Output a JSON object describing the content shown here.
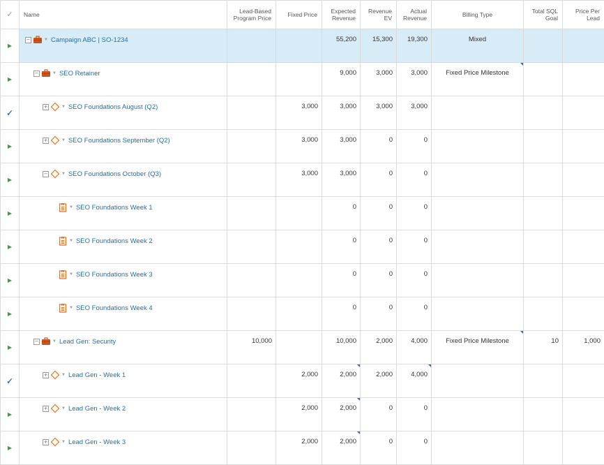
{
  "columns": {
    "name": "Name",
    "lead_based_1": "Lead-Based",
    "lead_based_2": "Program Price",
    "fixed_price": "Fixed Price",
    "expected_1": "Expected",
    "expected_2": "Revenue",
    "rev_ev_1": "Revenue",
    "rev_ev_2": "EV",
    "actual_1": "Actual",
    "actual_2": "Revenue",
    "billing_type": "Billing Type",
    "sql_1": "Total SQL",
    "sql_2": "Goal",
    "ppl_1": "Price Per",
    "ppl_2": "Lead"
  },
  "rows": [
    {
      "name": "Campaign ABC | SO-1234",
      "lead_based": "",
      "fixed_price": "",
      "expected": "55,200",
      "rev_ev": "15,300",
      "actual": "19,300",
      "billing_type": "Mixed",
      "sql_goal": "",
      "price_per_lead": ""
    },
    {
      "name": "SEO Retainer",
      "lead_based": "",
      "fixed_price": "",
      "expected": "9,000",
      "rev_ev": "3,000",
      "actual": "3,000",
      "billing_type": "Fixed Price Milestone",
      "sql_goal": "",
      "price_per_lead": ""
    },
    {
      "name": "SEO Foundations August (Q2)",
      "lead_based": "",
      "fixed_price": "3,000",
      "expected": "3,000",
      "rev_ev": "3,000",
      "actual": "3,000",
      "billing_type": "",
      "sql_goal": "",
      "price_per_lead": ""
    },
    {
      "name": "SEO Foundations September (Q2)",
      "lead_based": "",
      "fixed_price": "3,000",
      "expected": "3,000",
      "rev_ev": "0",
      "actual": "0",
      "billing_type": "",
      "sql_goal": "",
      "price_per_lead": ""
    },
    {
      "name": "SEO Foundations October (Q3)",
      "lead_based": "",
      "fixed_price": "3,000",
      "expected": "3,000",
      "rev_ev": "0",
      "actual": "0",
      "billing_type": "",
      "sql_goal": "",
      "price_per_lead": ""
    },
    {
      "name": "SEO Foundations Week 1",
      "lead_based": "",
      "fixed_price": "",
      "expected": "0",
      "rev_ev": "0",
      "actual": "0",
      "billing_type": "",
      "sql_goal": "",
      "price_per_lead": ""
    },
    {
      "name": "SEO Foundations Week 2",
      "lead_based": "",
      "fixed_price": "",
      "expected": "0",
      "rev_ev": "0",
      "actual": "0",
      "billing_type": "",
      "sql_goal": "",
      "price_per_lead": ""
    },
    {
      "name": "SEO Foundations Week 3",
      "lead_based": "",
      "fixed_price": "",
      "expected": "0",
      "rev_ev": "0",
      "actual": "0",
      "billing_type": "",
      "sql_goal": "",
      "price_per_lead": ""
    },
    {
      "name": "SEO Foundations Week 4",
      "lead_based": "",
      "fixed_price": "",
      "expected": "0",
      "rev_ev": "0",
      "actual": "0",
      "billing_type": "",
      "sql_goal": "",
      "price_per_lead": ""
    },
    {
      "name": "Lead Gen: Security",
      "lead_based": "10,000",
      "fixed_price": "",
      "expected": "10,000",
      "rev_ev": "2,000",
      "actual": "4,000",
      "billing_type": "Fixed Price Milestone",
      "sql_goal": "10",
      "price_per_lead": "1,000"
    },
    {
      "name": "Lead Gen - Week 1",
      "lead_based": "",
      "fixed_price": "2,000",
      "expected": "2,000",
      "rev_ev": "2,000",
      "actual": "4,000",
      "billing_type": "",
      "sql_goal": "",
      "price_per_lead": ""
    },
    {
      "name": "Lead Gen - Week 2",
      "lead_based": "",
      "fixed_price": "2,000",
      "expected": "2,000",
      "rev_ev": "0",
      "actual": "0",
      "billing_type": "",
      "sql_goal": "",
      "price_per_lead": ""
    },
    {
      "name": "Lead Gen - Week 3",
      "lead_based": "",
      "fixed_price": "2,000",
      "expected": "2,000",
      "rev_ev": "0",
      "actual": "0",
      "billing_type": "",
      "sql_goal": "",
      "price_per_lead": ""
    }
  ],
  "icons": {
    "briefcase": "briefcase-icon",
    "milestone": "diamond-milestone-icon",
    "task": "clipboard-task-icon",
    "row_expander": "triangle-right-icon",
    "complete": "checkmark-icon"
  },
  "colors": {
    "link": "#1f6fb0",
    "selected_row": "#d8ecf7",
    "briefcase": "#c8551e",
    "milestone": "#e8883a",
    "expander": "#3aa13a",
    "check": "#2a7fc4"
  }
}
